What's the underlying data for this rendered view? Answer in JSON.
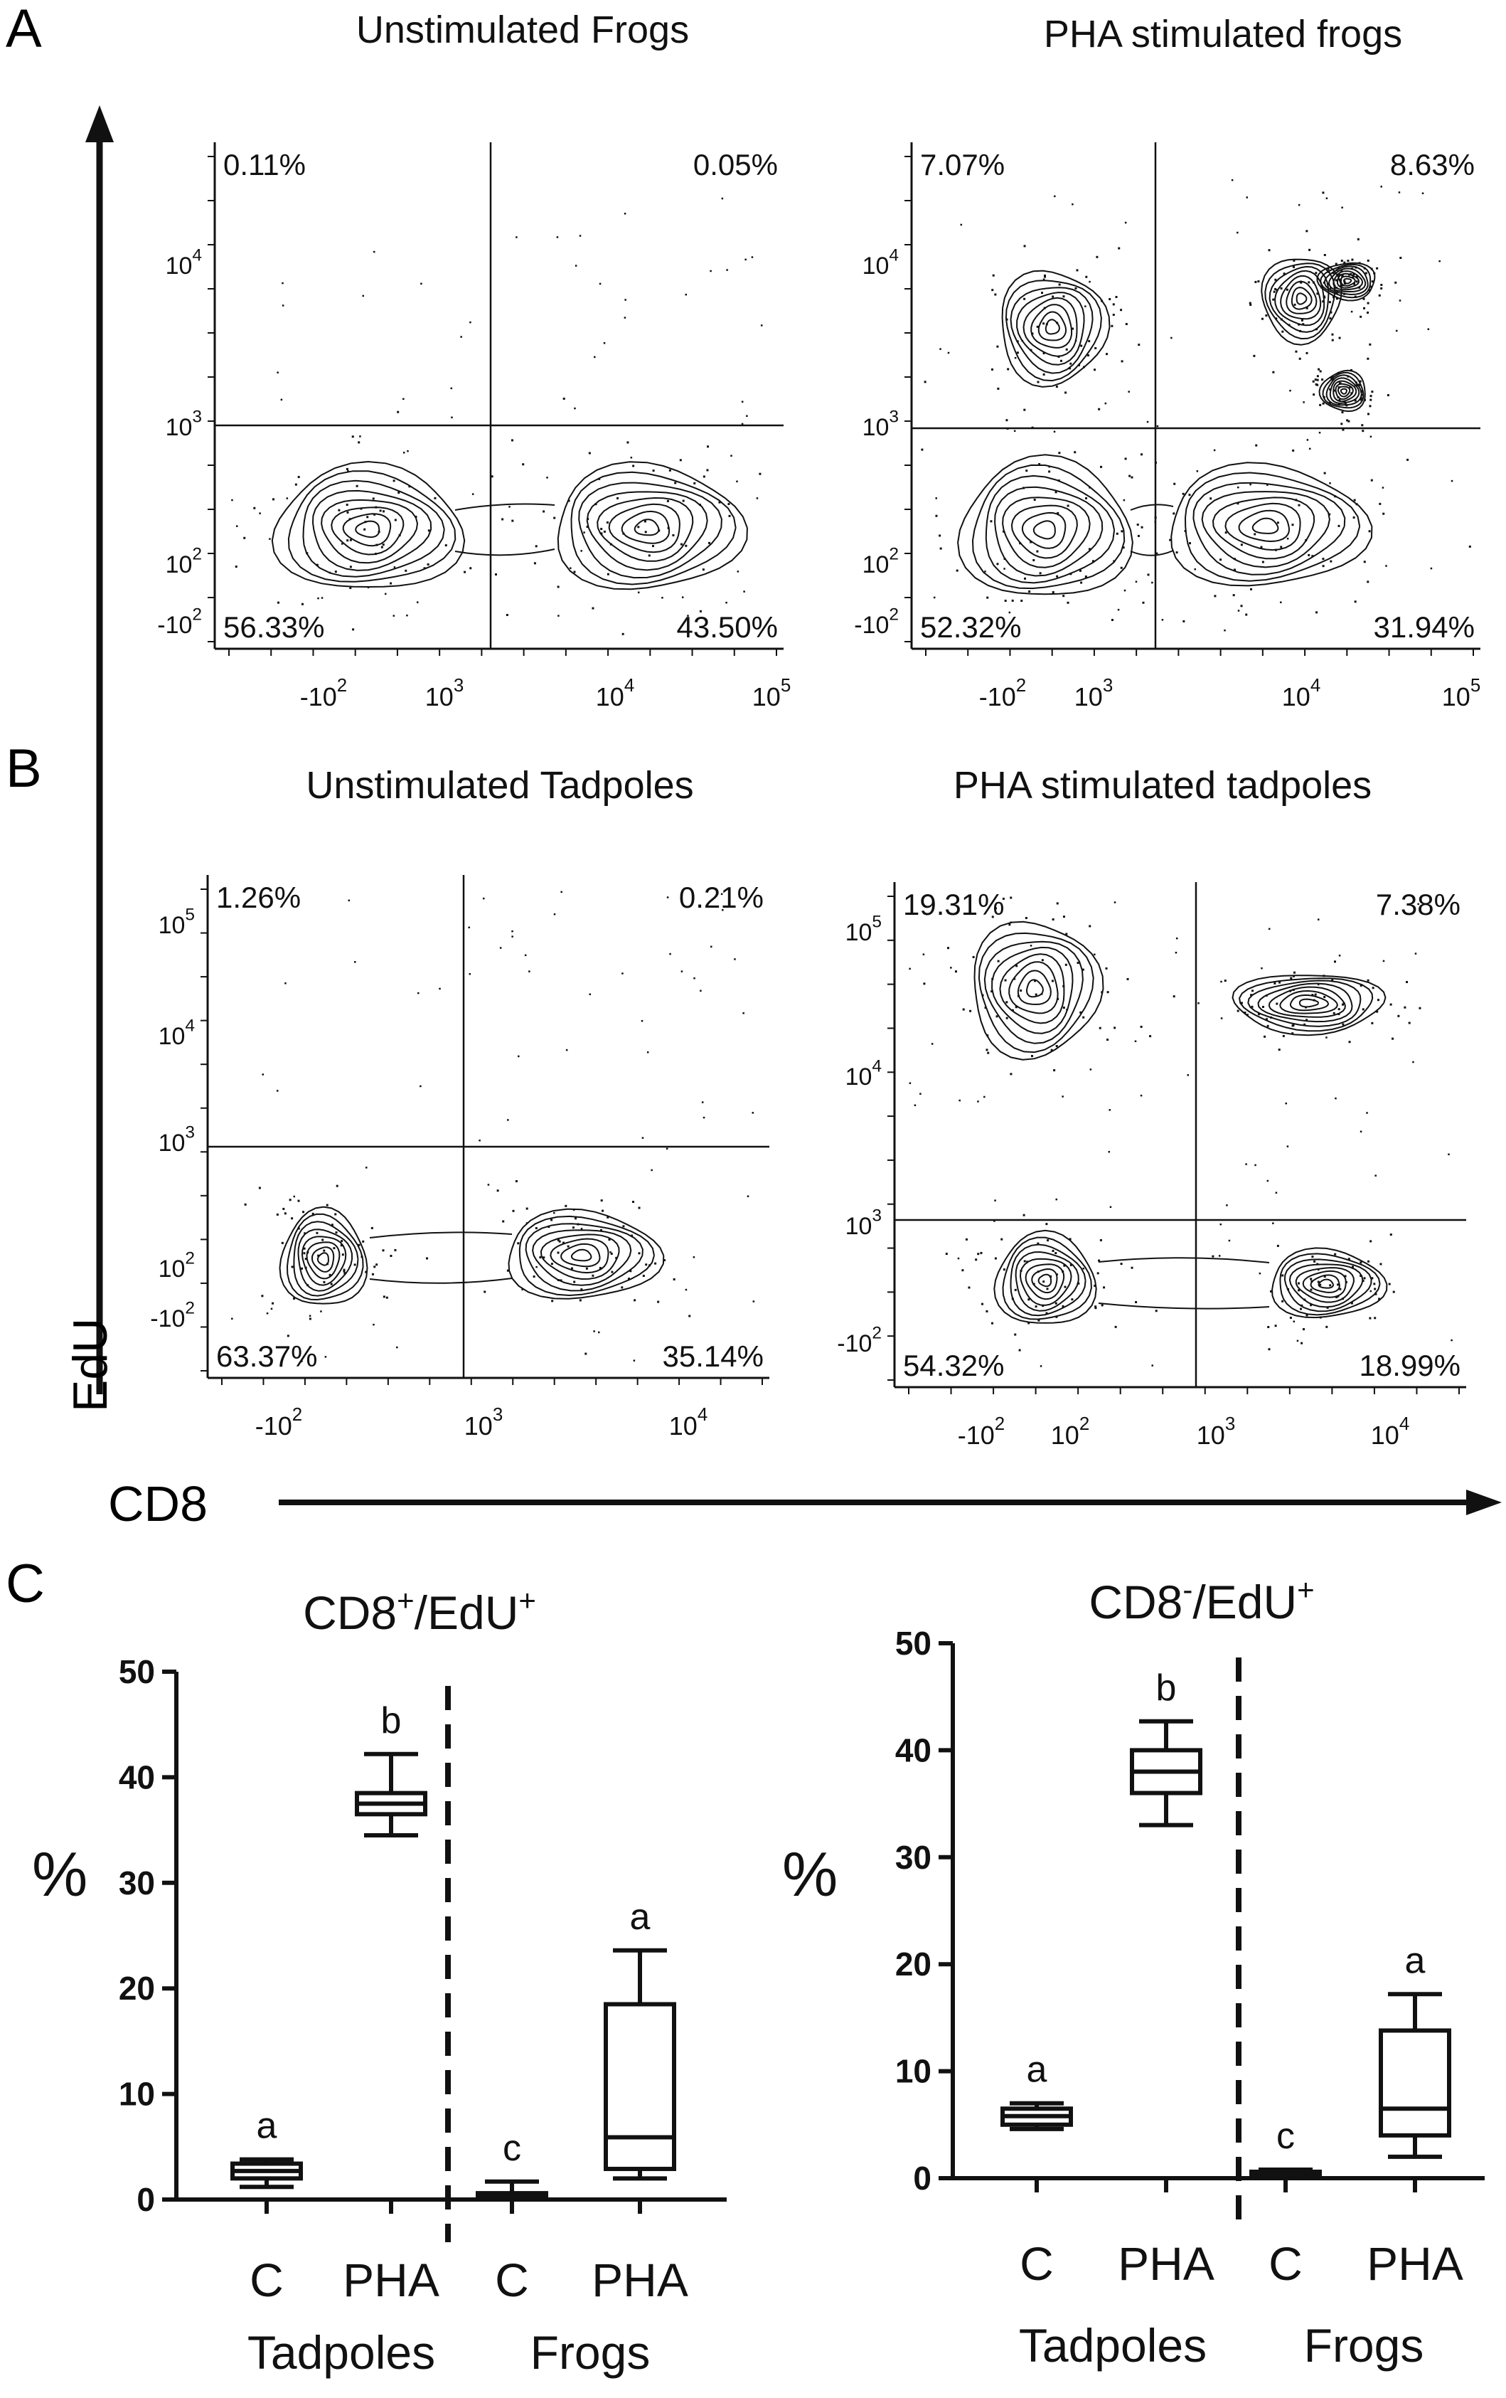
{
  "panels": {
    "A": "A",
    "B": "B",
    "C": "C"
  },
  "axes": {
    "y_label": "EdU",
    "x_label": "CD8"
  },
  "flow_plots": [
    {
      "id": "frogs-unstim",
      "title": "Unstimulated Frogs",
      "quadrants": {
        "top_left": "0.11%",
        "top_right": "0.05%",
        "bottom_left": "56.33%",
        "bottom_right": "43.50%"
      },
      "x_ticks": [
        "-10^2",
        "10^3",
        "10^4",
        "10^5"
      ],
      "y_ticks": [
        "10^4",
        "10^3",
        "10^2",
        "-10^2"
      ]
    },
    {
      "id": "frogs-pha",
      "title": "PHA stimulated frogs",
      "quadrants": {
        "top_left": "7.07%",
        "top_right": "8.63%",
        "bottom_left": "52.32%",
        "bottom_right": "31.94%"
      },
      "x_ticks": [
        "-10^2",
        "10^3",
        "10^4",
        "10^5"
      ],
      "y_ticks": [
        "10^4",
        "10^3",
        "10^2",
        "-10^2"
      ]
    },
    {
      "id": "tadpoles-unstim",
      "title": "Unstimulated Tadpoles",
      "quadrants": {
        "top_left": "1.26%",
        "top_right": "0.21%",
        "bottom_left": "63.37%",
        "bottom_right": "35.14%"
      },
      "x_ticks": [
        "-10^2",
        "10^3",
        "10^4"
      ],
      "y_ticks": [
        "10^5",
        "10^4",
        "10^3",
        "10^2",
        "-10^2"
      ]
    },
    {
      "id": "tadpoles-pha",
      "title": "PHA stimulated tadpoles",
      "quadrants": {
        "top_left": "19.31%",
        "top_right": "7.38%",
        "bottom_left": "54.32%",
        "bottom_right": "18.99%"
      },
      "x_ticks": [
        "-10^2",
        "10^2",
        "10^3",
        "10^4"
      ],
      "y_ticks": [
        "10^5",
        "10^4",
        "10^3",
        "-10^2"
      ]
    }
  ],
  "chart_data": [
    {
      "type": "box",
      "title": "CD8+/EdU+",
      "ylabel": "%",
      "ylim": [
        0,
        50
      ],
      "y_ticks": [
        0,
        10,
        20,
        30,
        40,
        50
      ],
      "categories": [
        "C",
        "PHA",
        "C",
        "PHA"
      ],
      "groups": [
        "Tadpoles",
        "Frogs"
      ],
      "boxes": [
        {
          "category": "C",
          "group": "Tadpoles",
          "min": 1.2,
          "q1": 2.0,
          "median": 2.7,
          "q3": 3.4,
          "max": 3.8,
          "letter": "a"
        },
        {
          "category": "PHA",
          "group": "Tadpoles",
          "min": 34.5,
          "q1": 36.5,
          "median": 37.5,
          "q3": 38.5,
          "max": 42.2,
          "letter": "b"
        },
        {
          "category": "C",
          "group": "Frogs",
          "min": 0.0,
          "q1": 0.1,
          "median": 0.3,
          "q3": 0.6,
          "max": 1.7,
          "letter": "c"
        },
        {
          "category": "PHA",
          "group": "Frogs",
          "min": 2.0,
          "q1": 2.9,
          "median": 5.9,
          "q3": 18.5,
          "max": 23.6,
          "letter": "a"
        }
      ]
    },
    {
      "type": "box",
      "title": "CD8-/EdU+",
      "ylabel": "%",
      "ylim": [
        0,
        50
      ],
      "y_ticks": [
        0,
        10,
        20,
        30,
        40,
        50
      ],
      "categories": [
        "C",
        "PHA",
        "C",
        "PHA"
      ],
      "groups": [
        "Tadpoles",
        "Frogs"
      ],
      "boxes": [
        {
          "category": "C",
          "group": "Tadpoles",
          "min": 4.6,
          "q1": 5.0,
          "median": 5.8,
          "q3": 6.5,
          "max": 7.0,
          "letter": "a"
        },
        {
          "category": "PHA",
          "group": "Tadpoles",
          "min": 33.0,
          "q1": 36.0,
          "median": 38.0,
          "q3": 40.0,
          "max": 42.7,
          "letter": "b"
        },
        {
          "category": "C",
          "group": "Frogs",
          "min": 0.0,
          "q1": 0.2,
          "median": 0.4,
          "q3": 0.6,
          "max": 0.8,
          "letter": "c"
        },
        {
          "category": "PHA",
          "group": "Frogs",
          "min": 2.0,
          "q1": 4.0,
          "median": 6.5,
          "q3": 13.8,
          "max": 17.2,
          "letter": "a"
        }
      ]
    }
  ]
}
